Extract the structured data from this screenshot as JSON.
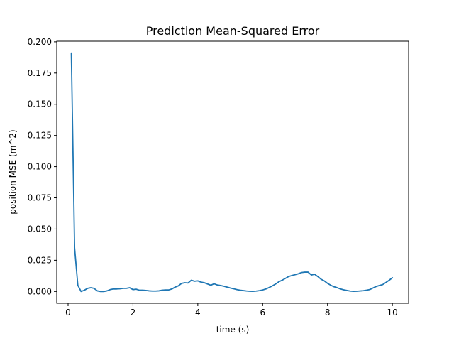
{
  "chart_data": {
    "type": "line",
    "title": "Prediction Mean-Squared Error",
    "xlabel": "time (s)",
    "ylabel": "position MSE (m^2)",
    "xlim": [
      -0.35,
      10.5
    ],
    "ylim": [
      -0.0095,
      0.2005
    ],
    "grid": false,
    "xticks": [
      0,
      2,
      4,
      6,
      8,
      10
    ],
    "xtick_labels": [
      "0",
      "2",
      "4",
      "6",
      "8",
      "10"
    ],
    "yticks": [
      0.0,
      0.025,
      0.05,
      0.075,
      0.1,
      0.125,
      0.15,
      0.175,
      0.2
    ],
    "ytick_labels": [
      "0.000",
      "0.025",
      "0.050",
      "0.075",
      "0.100",
      "0.125",
      "0.150",
      "0.175",
      "0.200"
    ],
    "series": [
      {
        "color": "#1f77b4",
        "x": [
          0.1,
          0.2,
          0.3,
          0.4,
          0.5,
          0.6,
          0.7,
          0.8,
          0.9,
          1.0,
          1.1,
          1.2,
          1.3,
          1.4,
          1.5,
          1.6,
          1.7,
          1.8,
          1.9,
          2.0,
          2.1,
          2.2,
          2.3,
          2.4,
          2.5,
          2.6,
          2.7,
          2.8,
          2.9,
          3.0,
          3.1,
          3.2,
          3.3,
          3.4,
          3.5,
          3.6,
          3.7,
          3.8,
          3.9,
          4.0,
          4.1,
          4.2,
          4.3,
          4.4,
          4.5,
          4.6,
          4.7,
          4.8,
          4.9,
          5.0,
          5.1,
          5.2,
          5.3,
          5.4,
          5.5,
          5.6,
          5.7,
          5.8,
          5.9,
          6.0,
          6.1,
          6.2,
          6.3,
          6.4,
          6.5,
          6.6,
          6.7,
          6.8,
          6.9,
          7.0,
          7.1,
          7.2,
          7.3,
          7.4,
          7.5,
          7.6,
          7.7,
          7.8,
          7.9,
          8.0,
          8.1,
          8.2,
          8.3,
          8.4,
          8.5,
          8.6,
          8.7,
          8.8,
          8.9,
          9.0,
          9.1,
          9.2,
          9.3,
          9.4,
          9.5,
          9.6,
          9.7,
          9.8,
          9.9,
          10.0
        ],
        "values": [
          0.191,
          0.035,
          0.005,
          0.0,
          0.001,
          0.0025,
          0.003,
          0.0025,
          0.0005,
          0.0,
          0.0,
          0.0005,
          0.0015,
          0.002,
          0.002,
          0.0022,
          0.0025,
          0.0025,
          0.003,
          0.0015,
          0.0018,
          0.001,
          0.001,
          0.0008,
          0.0005,
          0.0003,
          0.0003,
          0.0005,
          0.001,
          0.0012,
          0.0012,
          0.002,
          0.0035,
          0.0045,
          0.0065,
          0.007,
          0.0068,
          0.009,
          0.0082,
          0.0085,
          0.0075,
          0.007,
          0.006,
          0.005,
          0.0062,
          0.0052,
          0.0048,
          0.0042,
          0.0035,
          0.0028,
          0.0022,
          0.0015,
          0.001,
          0.0007,
          0.0004,
          0.0002,
          0.0001,
          0.0003,
          0.0007,
          0.0012,
          0.002,
          0.0032,
          0.0045,
          0.006,
          0.0078,
          0.009,
          0.0105,
          0.012,
          0.0128,
          0.0135,
          0.0142,
          0.0152,
          0.0155,
          0.0155,
          0.0132,
          0.0138,
          0.012,
          0.0098,
          0.0085,
          0.0065,
          0.005,
          0.0038,
          0.003,
          0.002,
          0.0013,
          0.0008,
          0.0003,
          0.0001,
          0.0002,
          0.0004,
          0.0006,
          0.001,
          0.0015,
          0.0028,
          0.004,
          0.0048,
          0.0055,
          0.0072,
          0.009,
          0.011
        ]
      }
    ]
  }
}
